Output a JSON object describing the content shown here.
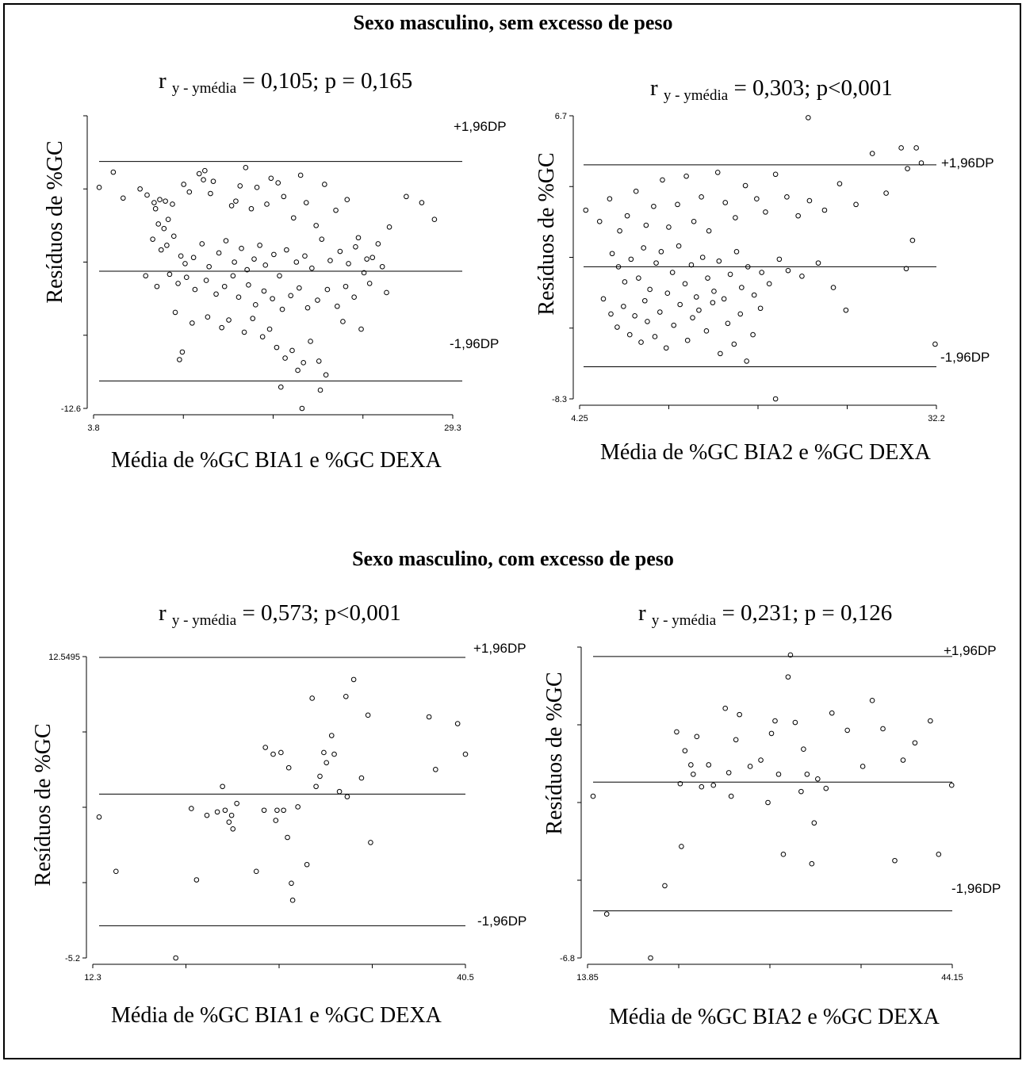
{
  "sections": [
    {
      "title": "Sexo masculino, sem excesso de peso"
    },
    {
      "title": "Sexo masculino, com excesso de peso"
    }
  ],
  "limit_labels": {
    "upper": "+1,96DP",
    "lower": "-1,96DP"
  },
  "chart_data": [
    {
      "type": "scatter",
      "stat": {
        "prefix": "r",
        "sub": "y - ymédia",
        "rest": "= 0,105; p = 0,165"
      },
      "xlabel": "Média de %GC BIA1 e %GC DEXA",
      "ylabel": "Resíduos de %GC",
      "xlim": [
        3.8,
        29.3
      ],
      "ylim": [
        -12.6,
        6.6
      ],
      "x_tick_labels": [
        "3.8",
        "29.3"
      ],
      "y_tick_labels": [
        "-12.6"
      ],
      "upper_limit": 3.6,
      "mean_line": -3.6,
      "lower_limit": -10.8,
      "points": [
        [
          4.2,
          1.9
        ],
        [
          5.2,
          2.9
        ],
        [
          5.9,
          1.2
        ],
        [
          7.1,
          1.8
        ],
        [
          7.6,
          1.4
        ],
        [
          8.1,
          0.9
        ],
        [
          8.5,
          1.1
        ],
        [
          8.2,
          0.5
        ],
        [
          8.9,
          1.0
        ],
        [
          9.1,
          -0.2
        ],
        [
          8.4,
          -0.5
        ],
        [
          8.8,
          -0.8
        ],
        [
          9.4,
          0.8
        ],
        [
          10.2,
          2.1
        ],
        [
          10.6,
          1.6
        ],
        [
          11.3,
          2.8
        ],
        [
          11.7,
          3.0
        ],
        [
          11.6,
          2.4
        ],
        [
          12.1,
          1.5
        ],
        [
          12.3,
          2.3
        ],
        [
          13.6,
          0.7
        ],
        [
          13.9,
          1.0
        ],
        [
          14.2,
          2.0
        ],
        [
          14.6,
          3.2
        ],
        [
          15.0,
          0.5
        ],
        [
          15.4,
          1.9
        ],
        [
          16.1,
          0.8
        ],
        [
          16.4,
          2.5
        ],
        [
          16.9,
          2.2
        ],
        [
          17.3,
          1.3
        ],
        [
          18.0,
          -0.1
        ],
        [
          18.5,
          2.7
        ],
        [
          18.9,
          0.9
        ],
        [
          19.6,
          -0.6
        ],
        [
          20.2,
          2.1
        ],
        [
          21.0,
          0.4
        ],
        [
          21.8,
          1.1
        ],
        [
          22.6,
          -1.4
        ],
        [
          23.2,
          -2.8
        ],
        [
          24.0,
          -1.8
        ],
        [
          24.8,
          -0.7
        ],
        [
          26.0,
          1.3
        ],
        [
          27.1,
          0.9
        ],
        [
          28.0,
          -0.2
        ],
        [
          8.0,
          -1.5
        ],
        [
          8.6,
          -2.2
        ],
        [
          9.0,
          -1.9
        ],
        [
          9.5,
          -1.3
        ],
        [
          10.0,
          -2.6
        ],
        [
          10.3,
          -3.1
        ],
        [
          10.9,
          -2.7
        ],
        [
          11.5,
          -1.8
        ],
        [
          12.0,
          -3.3
        ],
        [
          12.7,
          -2.4
        ],
        [
          13.2,
          -1.6
        ],
        [
          13.8,
          -3.0
        ],
        [
          14.3,
          -2.1
        ],
        [
          14.7,
          -3.5
        ],
        [
          15.2,
          -2.8
        ],
        [
          15.6,
          -1.9
        ],
        [
          16.0,
          -3.2
        ],
        [
          16.6,
          -2.5
        ],
        [
          17.0,
          -3.9
        ],
        [
          17.5,
          -2.2
        ],
        [
          18.2,
          -3.0
        ],
        [
          18.8,
          -2.6
        ],
        [
          19.3,
          -3.4
        ],
        [
          20.0,
          -1.5
        ],
        [
          20.6,
          -2.9
        ],
        [
          21.3,
          -2.3
        ],
        [
          21.9,
          -3.1
        ],
        [
          22.4,
          -2.0
        ],
        [
          23.0,
          -3.7
        ],
        [
          23.6,
          -2.7
        ],
        [
          24.3,
          -3.3
        ],
        [
          7.5,
          -3.9
        ],
        [
          8.3,
          -4.6
        ],
        [
          9.2,
          -3.8
        ],
        [
          9.8,
          -4.4
        ],
        [
          10.4,
          -4.0
        ],
        [
          11.0,
          -4.8
        ],
        [
          11.8,
          -4.2
        ],
        [
          12.5,
          -5.1
        ],
        [
          13.1,
          -4.6
        ],
        [
          13.7,
          -3.9
        ],
        [
          14.1,
          -5.3
        ],
        [
          14.8,
          -4.5
        ],
        [
          15.3,
          -5.8
        ],
        [
          15.9,
          -4.9
        ],
        [
          16.5,
          -5.4
        ],
        [
          17.2,
          -6.1
        ],
        [
          17.8,
          -5.2
        ],
        [
          18.4,
          -4.7
        ],
        [
          19.0,
          -6.0
        ],
        [
          19.7,
          -5.5
        ],
        [
          20.4,
          -4.8
        ],
        [
          21.1,
          -5.9
        ],
        [
          21.7,
          -4.6
        ],
        [
          22.3,
          -5.3
        ],
        [
          23.4,
          -4.4
        ],
        [
          24.6,
          -5.0
        ],
        [
          9.6,
          -6.3
        ],
        [
          10.8,
          -7.0
        ],
        [
          11.9,
          -6.6
        ],
        [
          12.9,
          -7.3
        ],
        [
          13.4,
          -6.8
        ],
        [
          14.5,
          -7.6
        ],
        [
          15.1,
          -6.7
        ],
        [
          15.8,
          -7.9
        ],
        [
          16.3,
          -7.4
        ],
        [
          16.8,
          -8.6
        ],
        [
          17.4,
          -9.3
        ],
        [
          17.9,
          -8.8
        ],
        [
          18.3,
          -10.1
        ],
        [
          18.7,
          -9.6
        ],
        [
          19.2,
          -8.2
        ],
        [
          19.8,
          -9.5
        ],
        [
          20.3,
          -10.4
        ],
        [
          17.1,
          -11.2
        ],
        [
          18.6,
          -12.6
        ],
        [
          19.9,
          -11.4
        ],
        [
          21.5,
          -6.9
        ],
        [
          22.8,
          -7.4
        ],
        [
          10.1,
          -8.9
        ],
        [
          9.9,
          -9.4
        ]
      ]
    },
    {
      "type": "scatter",
      "stat": {
        "prefix": "r",
        "sub": "y - ymédia",
        "rest": "= 0,303; p<0,001"
      },
      "xlabel": "Média de %GC BIA2 e %GC DEXA",
      "ylabel": "Resíduos de %GC",
      "xlim": [
        4.25,
        32.2
      ],
      "ylim": [
        -8.3,
        6.7
      ],
      "x_tick_labels": [
        "4.25",
        "32.2"
      ],
      "y_tick_labels": [
        "6.7",
        "-8.3"
      ],
      "upper_limit": 4.1,
      "mean_line": -1.3,
      "lower_limit": -6.6,
      "points": [
        [
          4.3,
          1.7
        ],
        [
          5.4,
          1.1
        ],
        [
          6.2,
          2.3
        ],
        [
          7.0,
          0.6
        ],
        [
          7.6,
          1.4
        ],
        [
          8.3,
          2.7
        ],
        [
          9.1,
          0.9
        ],
        [
          9.7,
          1.9
        ],
        [
          10.4,
          3.3
        ],
        [
          10.9,
          0.8
        ],
        [
          11.6,
          2.0
        ],
        [
          12.3,
          3.5
        ],
        [
          12.9,
          1.1
        ],
        [
          13.5,
          2.4
        ],
        [
          14.1,
          0.6
        ],
        [
          14.8,
          3.7
        ],
        [
          15.4,
          2.1
        ],
        [
          16.2,
          1.3
        ],
        [
          17.0,
          3.0
        ],
        [
          17.9,
          2.3
        ],
        [
          18.6,
          1.6
        ],
        [
          19.4,
          3.6
        ],
        [
          20.3,
          2.4
        ],
        [
          21.2,
          1.4
        ],
        [
          22.1,
          2.2
        ],
        [
          23.3,
          1.7
        ],
        [
          24.5,
          3.1
        ],
        [
          25.8,
          2.0
        ],
        [
          27.1,
          4.7
        ],
        [
          28.2,
          2.6
        ],
        [
          29.4,
          5.0
        ],
        [
          29.9,
          3.9
        ],
        [
          30.6,
          5.0
        ],
        [
          31.0,
          4.2
        ],
        [
          30.3,
          0.1
        ],
        [
          29.8,
          -1.4
        ],
        [
          6.4,
          -0.6
        ],
        [
          6.9,
          -1.3
        ],
        [
          7.4,
          -2.1
        ],
        [
          7.9,
          -0.9
        ],
        [
          8.5,
          -1.9
        ],
        [
          8.9,
          -0.3
        ],
        [
          9.4,
          -2.5
        ],
        [
          9.9,
          -1.1
        ],
        [
          10.3,
          -0.5
        ],
        [
          10.8,
          -2.7
        ],
        [
          11.2,
          -1.6
        ],
        [
          11.7,
          -0.2
        ],
        [
          12.2,
          -2.2
        ],
        [
          12.7,
          -1.2
        ],
        [
          13.1,
          -2.9
        ],
        [
          13.6,
          -0.8
        ],
        [
          14.0,
          -1.9
        ],
        [
          14.5,
          -2.6
        ],
        [
          14.9,
          -1.0
        ],
        [
          15.3,
          -3.0
        ],
        [
          15.8,
          -1.7
        ],
        [
          16.3,
          -0.5
        ],
        [
          16.7,
          -2.4
        ],
        [
          17.2,
          -1.3
        ],
        [
          17.7,
          -2.8
        ],
        [
          18.3,
          -1.6
        ],
        [
          18.9,
          -2.2
        ],
        [
          19.7,
          -0.9
        ],
        [
          20.4,
          -1.5
        ],
        [
          21.5,
          -1.8
        ],
        [
          22.8,
          -1.1
        ],
        [
          24.0,
          -2.4
        ],
        [
          5.7,
          -3.0
        ],
        [
          6.3,
          -3.8
        ],
        [
          6.8,
          -4.5
        ],
        [
          7.3,
          -3.4
        ],
        [
          7.8,
          -4.9
        ],
        [
          8.2,
          -3.9
        ],
        [
          8.7,
          -5.3
        ],
        [
          9.2,
          -4.2
        ],
        [
          9.8,
          -5.0
        ],
        [
          10.2,
          -3.7
        ],
        [
          10.7,
          -5.6
        ],
        [
          11.3,
          -4.4
        ],
        [
          11.8,
          -3.3
        ],
        [
          12.4,
          -5.2
        ],
        [
          12.8,
          -4.0
        ],
        [
          13.3,
          -3.6
        ],
        [
          13.9,
          -4.7
        ],
        [
          14.4,
          -3.2
        ],
        [
          15.0,
          -5.9
        ],
        [
          15.6,
          -4.3
        ],
        [
          16.1,
          -5.4
        ],
        [
          16.6,
          -3.8
        ],
        [
          17.1,
          -6.3
        ],
        [
          17.6,
          -4.9
        ],
        [
          18.2,
          -3.5
        ],
        [
          25.0,
          -3.6
        ],
        [
          9.0,
          -3.1
        ],
        [
          19.4,
          -8.3
        ],
        [
          32.1,
          -5.4
        ],
        [
          22.0,
          6.6
        ]
      ]
    },
    {
      "type": "scatter",
      "stat": {
        "prefix": "r",
        "sub": "y - ymédia",
        "rest": "= 0,573; p<0,001"
      },
      "xlabel": "Média de %GC BIA1 e %GC DEXA",
      "ylabel": "Resíduos de %GC",
      "xlim": [
        12.3,
        40.5
      ],
      "ylim": [
        -5.2,
        12.5495
      ],
      "x_tick_labels": [
        "12.3",
        "40.5"
      ],
      "y_tick_labels": [
        "12.5495",
        "-5.2"
      ],
      "upper_limit": 12.5,
      "mean_line": 4.45,
      "lower_limit": -3.3,
      "points": [
        [
          12.3,
          3.1
        ],
        [
          13.6,
          -0.1
        ],
        [
          18.2,
          -5.2
        ],
        [
          19.4,
          3.6
        ],
        [
          19.8,
          -0.6
        ],
        [
          20.6,
          3.2
        ],
        [
          21.4,
          3.4
        ],
        [
          21.8,
          4.9
        ],
        [
          22.0,
          3.5
        ],
        [
          22.3,
          2.8
        ],
        [
          22.5,
          3.2
        ],
        [
          22.6,
          2.4
        ],
        [
          22.9,
          3.9
        ],
        [
          24.4,
          -0.1
        ],
        [
          25.0,
          3.5
        ],
        [
          25.1,
          7.2
        ],
        [
          25.9,
          2.9
        ],
        [
          25.7,
          6.8
        ],
        [
          26.3,
          6.9
        ],
        [
          26.0,
          3.5
        ],
        [
          26.5,
          3.5
        ],
        [
          26.8,
          1.9
        ],
        [
          26.9,
          6.0
        ],
        [
          27.1,
          -0.8
        ],
        [
          27.2,
          -1.8
        ],
        [
          27.6,
          3.7
        ],
        [
          28.3,
          0.3
        ],
        [
          28.7,
          10.1
        ],
        [
          29.0,
          4.9
        ],
        [
          29.3,
          5.5
        ],
        [
          29.6,
          6.9
        ],
        [
          29.8,
          6.3
        ],
        [
          30.2,
          7.9
        ],
        [
          30.4,
          6.8
        ],
        [
          30.8,
          4.6
        ],
        [
          31.3,
          10.2
        ],
        [
          31.4,
          4.3
        ],
        [
          31.9,
          11.2
        ],
        [
          32.5,
          5.4
        ],
        [
          33.0,
          9.1
        ],
        [
          33.2,
          1.6
        ],
        [
          37.7,
          9.0
        ],
        [
          38.2,
          5.9
        ],
        [
          39.9,
          8.6
        ],
        [
          40.5,
          6.8
        ]
      ]
    },
    {
      "type": "scatter",
      "stat": {
        "prefix": "r",
        "sub": "y - ymédia",
        "rest": "=  0,231; p = 0,126"
      },
      "xlabel": "Média de %GC BIA2 e %GC DEXA",
      "ylabel": "Resíduos de %GC",
      "xlim": [
        13.85,
        44.15
      ],
      "ylim": [
        -6.8,
        13.0
      ],
      "x_tick_labels": [
        "13.85",
        "44.15"
      ],
      "y_tick_labels": [
        "-6.8"
      ],
      "upper_limit": 12.4,
      "mean_line": 4.4,
      "lower_limit": -3.8,
      "points": [
        [
          13.85,
          3.5
        ],
        [
          15.0,
          -4.0
        ],
        [
          18.7,
          -6.8
        ],
        [
          19.9,
          -2.2
        ],
        [
          20.9,
          7.6
        ],
        [
          21.2,
          4.3
        ],
        [
          21.3,
          0.3
        ],
        [
          21.6,
          6.4
        ],
        [
          22.1,
          5.5
        ],
        [
          22.3,
          4.9
        ],
        [
          22.6,
          7.3
        ],
        [
          23.0,
          4.1
        ],
        [
          23.6,
          5.5
        ],
        [
          24.0,
          4.2
        ],
        [
          25.0,
          9.1
        ],
        [
          25.3,
          5.0
        ],
        [
          25.5,
          3.5
        ],
        [
          25.9,
          7.1
        ],
        [
          26.2,
          8.7
        ],
        [
          27.1,
          5.4
        ],
        [
          28.0,
          5.8
        ],
        [
          28.6,
          3.1
        ],
        [
          28.9,
          7.5
        ],
        [
          29.2,
          8.3
        ],
        [
          29.5,
          4.9
        ],
        [
          29.9,
          -0.2
        ],
        [
          30.3,
          11.1
        ],
        [
          30.5,
          12.5
        ],
        [
          30.9,
          8.2
        ],
        [
          31.4,
          3.8
        ],
        [
          31.6,
          6.5
        ],
        [
          31.9,
          4.9
        ],
        [
          32.3,
          -0.8
        ],
        [
          32.5,
          1.8
        ],
        [
          32.8,
          4.6
        ],
        [
          33.5,
          4.0
        ],
        [
          34.0,
          8.8
        ],
        [
          35.3,
          7.7
        ],
        [
          36.6,
          5.4
        ],
        [
          37.4,
          9.6
        ],
        [
          38.3,
          7.8
        ],
        [
          39.3,
          -0.6
        ],
        [
          40.0,
          5.8
        ],
        [
          41.0,
          6.9
        ],
        [
          42.3,
          8.3
        ],
        [
          43.0,
          -0.2
        ],
        [
          44.1,
          4.2
        ]
      ]
    }
  ]
}
